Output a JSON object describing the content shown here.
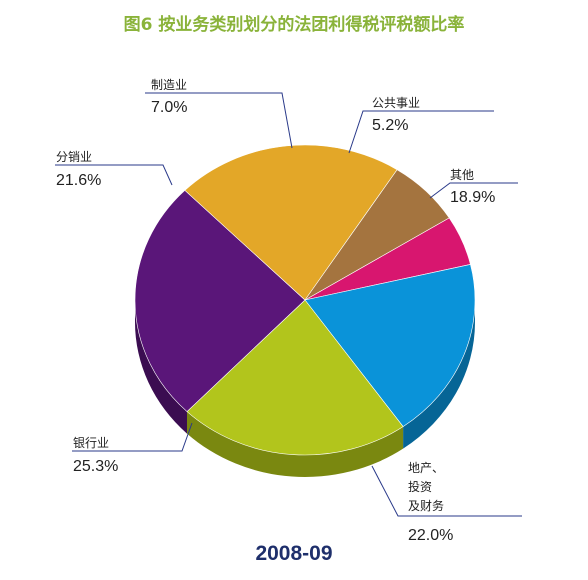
{
  "chart_data": {
    "type": "pie",
    "title": "图6  按业务类别划分的法团利得税评税额比率",
    "subtitle": "2008-09",
    "unit": "%",
    "categories": [
      "公共事业",
      "其他",
      "地产、投资及财务",
      "银行业",
      "分销业",
      "制造业"
    ],
    "label_lines": [
      [
        "公共事业"
      ],
      [
        "其他"
      ],
      [
        "地产、",
        "投资",
        "及财务"
      ],
      [
        "银行业"
      ],
      [
        "分销业"
      ],
      [
        "制造业"
      ]
    ],
    "values": [
      5.2,
      18.9,
      22.0,
      25.3,
      21.6,
      7.0
    ],
    "value_labels": [
      "5.2%",
      "18.9%",
      "22.0%",
      "25.3%",
      "21.6%",
      "7.0%"
    ],
    "colors": [
      "#d8166f",
      "#0a93d9",
      "#b2c51c",
      "#5a1679",
      "#e3a728",
      "#a4743f"
    ],
    "side_colors": [
      "#8f0e49",
      "#066596",
      "#7a8810",
      "#3b0d51",
      "#a0741a",
      "#6f4e29"
    ],
    "title_color": "#8ab33a",
    "subtitle_color": "#1e2f6b",
    "leader_color": "#2a3a8a"
  }
}
